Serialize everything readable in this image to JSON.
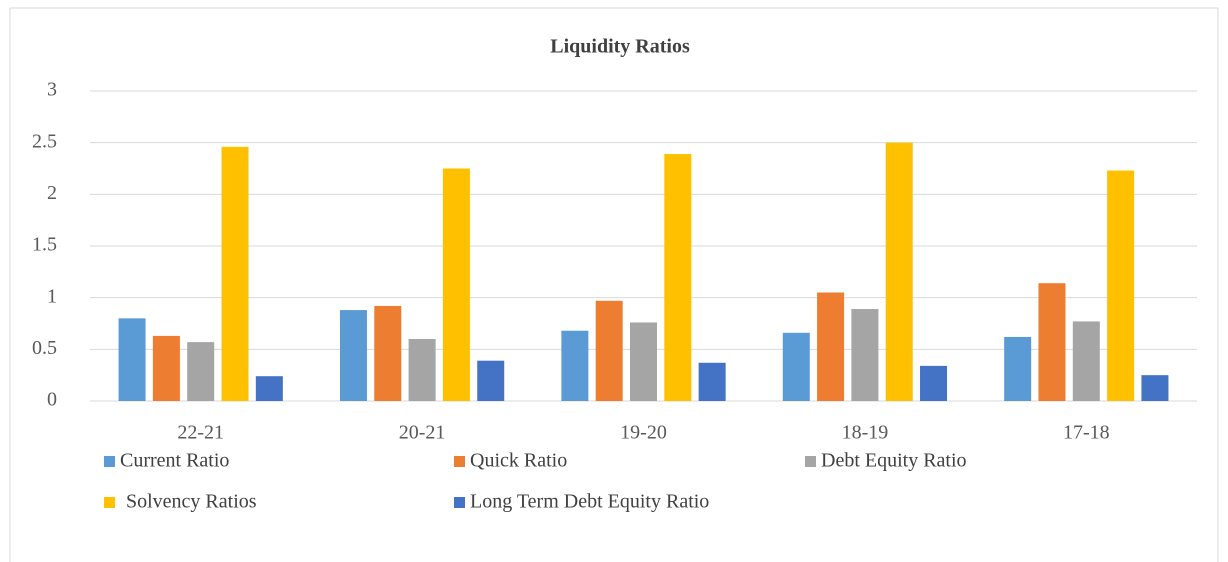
{
  "chart_data": {
    "type": "bar",
    "title": "Liquidity Ratios",
    "categories": [
      "22-21",
      "20-21",
      "19-20",
      "18-19",
      "17-18"
    ],
    "series": [
      {
        "name": "Current Ratio",
        "color": "#5b9bd5",
        "values": [
          0.8,
          0.88,
          0.68,
          0.66,
          0.62
        ]
      },
      {
        "name": "Quick Ratio",
        "color": "#ed7d31",
        "values": [
          0.63,
          0.92,
          0.97,
          1.05,
          1.14
        ]
      },
      {
        "name": "Debt Equity Ratio",
        "color": "#a5a5a5",
        "values": [
          0.57,
          0.6,
          0.76,
          0.89,
          0.77
        ]
      },
      {
        "name": "Solvency Ratios",
        "color": "#ffc000",
        "values": [
          2.46,
          2.25,
          2.39,
          2.5,
          2.23
        ]
      },
      {
        "name": "Long Term Debt Equity Ratio",
        "color": "#4472c4",
        "values": [
          0.24,
          0.39,
          0.37,
          0.34,
          0.25
        ]
      }
    ],
    "ylim": [
      0,
      3
    ],
    "yticks": [
      0,
      0.5,
      1,
      1.5,
      2,
      2.5,
      3
    ],
    "grid": true,
    "legend": "bottom"
  }
}
